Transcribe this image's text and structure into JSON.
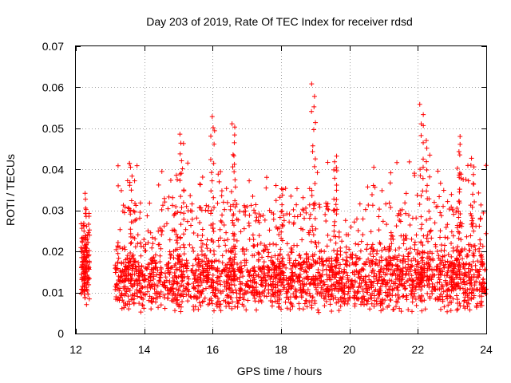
{
  "chart_data": {
    "type": "scatter",
    "title": "Day 203 of 2019, Rate Of TEC Index for receiver rdsd",
    "xlabel": "GPS time / hours",
    "ylabel": "ROTI / TECUs",
    "xlim": [
      12,
      24
    ],
    "ylim": [
      0,
      0.07
    ],
    "xticks": [
      12,
      14,
      16,
      18,
      20,
      22,
      24
    ],
    "xtick_labels": [
      "12",
      "14",
      "16",
      "18",
      "20",
      "22",
      "24"
    ],
    "yticks": [
      0,
      0.01,
      0.02,
      0.03,
      0.04,
      0.05,
      0.06,
      0.07
    ],
    "ytick_labels": [
      "0",
      "0.01",
      "0.02",
      "0.03",
      "0.04",
      "0.05",
      "0.06",
      "0.07"
    ],
    "grid": true,
    "marker": "+",
    "series_color": "#ff0000",
    "data_windows_hours": [
      [
        12.15,
        12.4
      ],
      [
        13.15,
        24.0
      ]
    ],
    "typical_range": [
      0.005,
      0.02
    ],
    "notable_peaks": [
      {
        "x": 12.28,
        "y": 0.0335
      },
      {
        "x": 13.6,
        "y": 0.041
      },
      {
        "x": 15.1,
        "y": 0.049
      },
      {
        "x": 16.0,
        "y": 0.053
      },
      {
        "x": 16.6,
        "y": 0.052
      },
      {
        "x": 18.0,
        "y": 0.036
      },
      {
        "x": 18.95,
        "y": 0.0605
      },
      {
        "x": 19.6,
        "y": 0.044
      },
      {
        "x": 22.1,
        "y": 0.056
      },
      {
        "x": 22.3,
        "y": 0.047
      },
      {
        "x": 23.2,
        "y": 0.048
      },
      {
        "x": 23.6,
        "y": 0.043
      }
    ]
  }
}
